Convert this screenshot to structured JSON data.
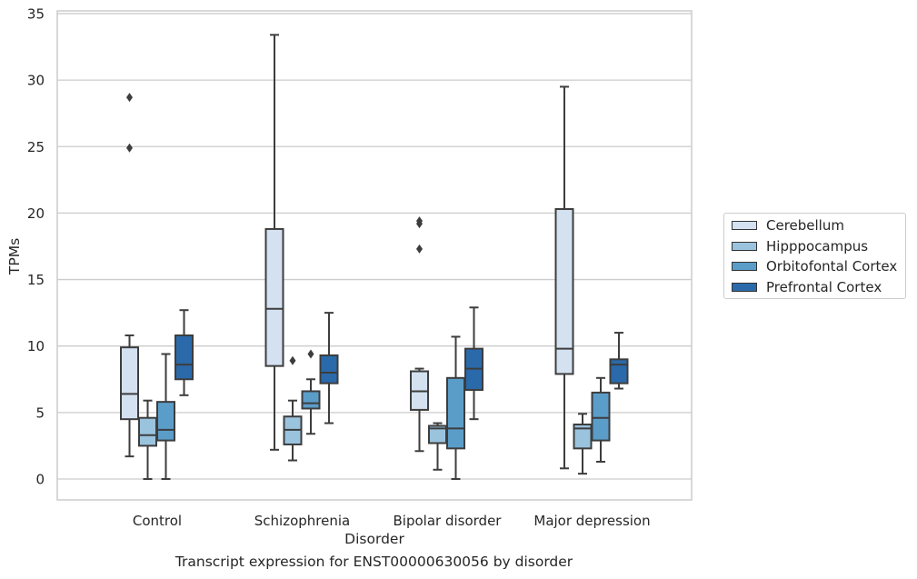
{
  "chart_data": {
    "type": "boxplot",
    "xlabel": "Disorder",
    "ylabel": "TPMs",
    "caption": "Transcript expression for ENST00000630056 by disorder",
    "ylim": [
      -1.5,
      35.3
    ],
    "yticks": [
      0,
      5,
      10,
      15,
      20,
      25,
      30,
      35
    ],
    "grid": "horizontal",
    "legend_position": "right, outside plot",
    "categories": [
      "Control",
      "Schizophrenia",
      "Bipolar disorder",
      "Major depression"
    ],
    "series": [
      {
        "name": "Cerebellum",
        "color": "#d3e1f0",
        "boxes": [
          {
            "whisker_low": 1.7,
            "q1": 4.5,
            "median": 6.4,
            "q3": 9.9,
            "whisker_high": 10.8,
            "outliers": [
              24.9,
              28.7
            ]
          },
          {
            "whisker_low": 2.2,
            "q1": 8.5,
            "median": 12.8,
            "q3": 18.8,
            "whisker_high": 33.4,
            "outliers": []
          },
          {
            "whisker_low": 2.1,
            "q1": 5.2,
            "median": 6.6,
            "q3": 8.1,
            "whisker_high": 8.3,
            "outliers": [
              17.3,
              19.2,
              19.4
            ]
          },
          {
            "whisker_low": 0.8,
            "q1": 7.9,
            "median": 9.8,
            "q3": 20.3,
            "whisker_high": 29.5,
            "outliers": []
          }
        ]
      },
      {
        "name": "Hipppocampus",
        "color": "#9ac3de",
        "boxes": [
          {
            "whisker_low": 0.0,
            "q1": 2.5,
            "median": 3.3,
            "q3": 4.6,
            "whisker_high": 5.9,
            "outliers": []
          },
          {
            "whisker_low": 1.4,
            "q1": 2.6,
            "median": 3.7,
            "q3": 4.7,
            "whisker_high": 5.9,
            "outliers": [
              8.9
            ]
          },
          {
            "whisker_low": 0.7,
            "q1": 2.7,
            "median": 3.8,
            "q3": 4.0,
            "whisker_high": 4.2,
            "outliers": []
          },
          {
            "whisker_low": 0.4,
            "q1": 2.3,
            "median": 3.8,
            "q3": 4.1,
            "whisker_high": 4.9,
            "outliers": []
          }
        ]
      },
      {
        "name": "Orbitofontal Cortex",
        "color": "#5b9dc9",
        "boxes": [
          {
            "whisker_low": 0.0,
            "q1": 2.9,
            "median": 3.7,
            "q3": 5.8,
            "whisker_high": 9.4,
            "outliers": []
          },
          {
            "whisker_low": 3.4,
            "q1": 5.3,
            "median": 5.7,
            "q3": 6.6,
            "whisker_high": 7.5,
            "outliers": [
              9.4
            ]
          },
          {
            "whisker_low": 0.0,
            "q1": 2.3,
            "median": 3.8,
            "q3": 7.6,
            "whisker_high": 10.7,
            "outliers": []
          },
          {
            "whisker_low": 1.3,
            "q1": 2.9,
            "median": 4.6,
            "q3": 6.5,
            "whisker_high": 7.6,
            "outliers": []
          }
        ]
      },
      {
        "name": "Prefrontal Cortex",
        "color": "#2a6aab",
        "boxes": [
          {
            "whisker_low": 6.3,
            "q1": 7.5,
            "median": 8.6,
            "q3": 10.8,
            "whisker_high": 12.7,
            "outliers": []
          },
          {
            "whisker_low": 4.2,
            "q1": 7.2,
            "median": 8.0,
            "q3": 9.3,
            "whisker_high": 12.5,
            "outliers": []
          },
          {
            "whisker_low": 4.5,
            "q1": 6.7,
            "median": 8.3,
            "q3": 9.8,
            "whisker_high": 12.9,
            "outliers": []
          },
          {
            "whisker_low": 6.8,
            "q1": 7.2,
            "median": 8.6,
            "q3": 9.0,
            "whisker_high": 11.0,
            "outliers": []
          }
        ]
      }
    ]
  }
}
